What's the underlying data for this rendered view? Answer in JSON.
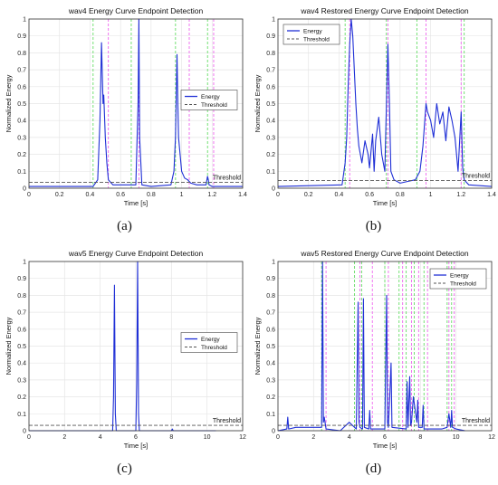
{
  "colors": {
    "energy": "#1f2fd6",
    "threshold": "#555555",
    "start_marker": "#66dd66",
    "end_marker": "#ee66ee",
    "grid": "#e6e6e6",
    "axis": "#333333"
  },
  "chart_data": [
    {
      "type": "line",
      "caption": "(a)",
      "title": "wav4 Energy Curve Endpoint Detection",
      "xlabel": "Time [s]",
      "ylabel": "Normalized Energy",
      "xlim": [
        0,
        1.4
      ],
      "ylim": [
        0,
        1
      ],
      "xticks": [
        "0",
        "0.2",
        "0.4",
        "0.6",
        "0.8",
        "1",
        "1.2",
        "1.4"
      ],
      "yticks": [
        "0",
        "0.1",
        "0.2",
        "0.3",
        "0.4",
        "0.5",
        "0.6",
        "0.7",
        "0.8",
        "0.9",
        "1"
      ],
      "grid": true,
      "legend_position": "center-right",
      "series": [
        {
          "name": "Energy",
          "x": [
            0,
            0.42,
            0.45,
            0.465,
            0.475,
            0.485,
            0.49,
            0.5,
            0.51,
            0.52,
            0.55,
            0.6,
            0.7,
            0.715,
            0.72,
            0.725,
            0.74,
            0.8,
            0.93,
            0.95,
            0.96,
            0.97,
            0.975,
            0.98,
            0.99,
            1.0,
            1.02,
            1.04,
            1.06,
            1.1,
            1.16,
            1.17,
            1.175,
            1.18,
            1.2,
            1.25,
            1.4
          ],
          "y": [
            0.01,
            0.01,
            0.05,
            0.4,
            0.86,
            0.5,
            0.55,
            0.3,
            0.15,
            0.05,
            0.02,
            0.02,
            0.02,
            0.5,
            1.0,
            0.3,
            0.02,
            0.01,
            0.02,
            0.1,
            0.3,
            0.79,
            0.5,
            0.3,
            0.2,
            0.1,
            0.06,
            0.05,
            0.03,
            0.02,
            0.02,
            0.07,
            0.05,
            0.02,
            0.01,
            0.01,
            0.01
          ]
        },
        {
          "name": "Threshold",
          "x": [
            0,
            1.4
          ],
          "y": [
            0.035,
            0.035
          ]
        }
      ],
      "start_markers": [
        0.42,
        0.67,
        0.96,
        1.17
      ],
      "end_markers": [
        0.52,
        0.72,
        1.05,
        1.21
      ],
      "threshold_label": "Threshold"
    },
    {
      "type": "line",
      "caption": "(b)",
      "title": "wav4 Restored Energy Curve Endpoint Detection",
      "xlabel": "Time [s]",
      "ylabel": "Normalized Energy",
      "xlim": [
        0,
        1.4
      ],
      "ylim": [
        0,
        1
      ],
      "xticks": [
        "0",
        "0.2",
        "0.4",
        "0.6",
        "0.8",
        "1",
        "1.2",
        "1.4"
      ],
      "yticks": [
        "0",
        "0.1",
        "0.2",
        "0.3",
        "0.4",
        "0.5",
        "0.6",
        "0.7",
        "0.8",
        "0.9",
        "1"
      ],
      "grid": true,
      "legend_position": "top-left",
      "series": [
        {
          "name": "Energy",
          "x": [
            0,
            0.42,
            0.44,
            0.45,
            0.46,
            0.47,
            0.48,
            0.49,
            0.5,
            0.51,
            0.52,
            0.53,
            0.55,
            0.57,
            0.59,
            0.6,
            0.62,
            0.63,
            0.64,
            0.66,
            0.68,
            0.7,
            0.72,
            0.73,
            0.74,
            0.76,
            0.8,
            0.85,
            0.9,
            0.93,
            0.95,
            0.97,
            0.98,
            1.0,
            1.02,
            1.04,
            1.06,
            1.08,
            1.1,
            1.12,
            1.14,
            1.16,
            1.18,
            1.2,
            1.21,
            1.22,
            1.25,
            1.4
          ],
          "y": [
            0.01,
            0.02,
            0.15,
            0.3,
            0.6,
            0.85,
            1.0,
            0.9,
            0.7,
            0.5,
            0.35,
            0.25,
            0.15,
            0.28,
            0.2,
            0.12,
            0.32,
            0.1,
            0.28,
            0.42,
            0.2,
            0.1,
            0.85,
            0.5,
            0.1,
            0.05,
            0.03,
            0.04,
            0.05,
            0.1,
            0.25,
            0.5,
            0.45,
            0.4,
            0.3,
            0.5,
            0.38,
            0.45,
            0.28,
            0.48,
            0.4,
            0.3,
            0.1,
            0.45,
            0.12,
            0.05,
            0.02,
            0.01
          ]
        },
        {
          "name": "Threshold",
          "x": [
            0,
            1.4
          ],
          "y": [
            0.045,
            0.045
          ]
        }
      ],
      "start_markers": [
        0.44,
        0.71,
        0.91,
        1.22
      ],
      "end_markers": [
        0.47,
        0.72,
        0.97,
        1.2
      ],
      "threshold_label": "Threshold"
    },
    {
      "type": "line",
      "caption": "(c)",
      "title": "wav5 Energy Curve Endpoint Detection",
      "xlabel": "Time [s]",
      "ylabel": "Normalized Energy",
      "xlim": [
        0,
        12
      ],
      "ylim": [
        0,
        1
      ],
      "xticks": [
        "0",
        "2",
        "4",
        "6",
        "8",
        "10",
        "12"
      ],
      "yticks": [
        "0",
        "0.1",
        "0.2",
        "0.3",
        "0.4",
        "0.5",
        "0.6",
        "0.7",
        "0.8",
        "0.9",
        "1"
      ],
      "grid": true,
      "legend_position": "center-right",
      "series": [
        {
          "name": "Energy",
          "x": [
            0,
            4.7,
            4.75,
            4.8,
            4.85,
            4.9,
            6.0,
            6.05,
            6.1,
            6.15,
            6.2,
            8.0,
            8.05,
            8.1,
            10.5
          ],
          "y": [
            0.0,
            0.0,
            0.2,
            0.86,
            0.1,
            0.0,
            0.0,
            0.28,
            1.0,
            0.1,
            0.0,
            0.0,
            0.01,
            0.0,
            0.0
          ]
        },
        {
          "name": "Threshold",
          "x": [
            0,
            12
          ],
          "y": [
            0.032,
            0.032
          ]
        }
      ],
      "start_markers": [],
      "end_markers": [],
      "threshold_label": "Threshold"
    },
    {
      "type": "line",
      "caption": "(d)",
      "title": "wav5 Restored Energy Curve Endpoint Detection",
      "xlabel": "Time [s]",
      "ylabel": "Normalized Energy",
      "xlim": [
        0,
        12
      ],
      "ylim": [
        0,
        1
      ],
      "xticks": [
        "0",
        "2",
        "4",
        "6",
        "8",
        "10",
        "12"
      ],
      "yticks": [
        "0",
        "0.1",
        "0.2",
        "0.3",
        "0.4",
        "0.5",
        "0.6",
        "0.7",
        "0.8",
        "0.9",
        "1"
      ],
      "grid": true,
      "legend_position": "top-right",
      "series": [
        {
          "name": "Energy",
          "x": [
            0,
            0.5,
            0.55,
            0.6,
            1.0,
            2.45,
            2.5,
            2.55,
            2.6,
            2.7,
            3.5,
            4.0,
            4.4,
            4.5,
            4.55,
            4.6,
            4.75,
            4.8,
            4.85,
            5.1,
            5.15,
            5.2,
            6.0,
            6.1,
            6.15,
            6.2,
            6.3,
            6.35,
            6.4,
            7.2,
            7.25,
            7.3,
            7.4,
            7.45,
            7.5,
            7.6,
            7.8,
            7.85,
            7.9,
            8.1,
            8.15,
            8.2,
            8.5,
            9.2,
            9.5,
            9.6,
            9.7,
            9.75,
            9.8,
            10.0,
            10.5
          ],
          "y": [
            0.0,
            0.01,
            0.08,
            0.01,
            0.02,
            0.02,
            1.0,
            0.05,
            0.08,
            0.01,
            0.0,
            0.05,
            0.01,
            0.76,
            0.05,
            0.02,
            0.01,
            0.78,
            0.02,
            0.01,
            0.12,
            0.01,
            0.01,
            0.8,
            0.05,
            0.02,
            0.26,
            0.4,
            0.02,
            0.01,
            0.29,
            0.02,
            0.32,
            0.03,
            0.05,
            0.2,
            0.05,
            0.18,
            0.02,
            0.02,
            0.15,
            0.01,
            0.01,
            0.01,
            0.02,
            0.1,
            0.02,
            0.12,
            0.02,
            0.01,
            0.0
          ]
        },
        {
          "name": "Threshold",
          "x": [
            0,
            12
          ],
          "y": [
            0.032,
            0.032
          ]
        }
      ],
      "start_markers": [
        2.45,
        4.3,
        4.7,
        6.0,
        6.8,
        7.2,
        7.65,
        8.2,
        9.5,
        9.75
      ],
      "end_markers": [
        2.7,
        4.6,
        5.3,
        6.2,
        7.0,
        7.5,
        7.9,
        8.4,
        9.6,
        9.9
      ],
      "threshold_label": "Threshold"
    }
  ]
}
